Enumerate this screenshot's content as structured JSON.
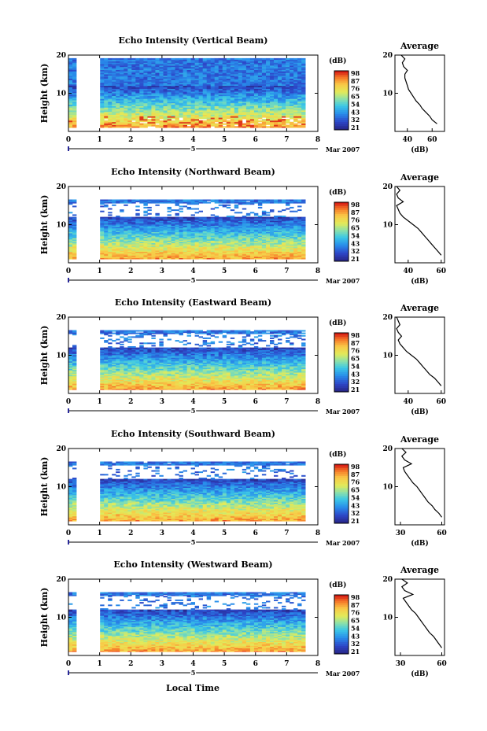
{
  "figure": {
    "x_axis_title": "Local Time",
    "date_label": "Mar 2007",
    "day_label": "5"
  },
  "chart_data": [
    {
      "type": "heatmap",
      "title": "Echo Intensity (Vertical Beam)",
      "ylabel": "Height (km)",
      "xlim": [
        0,
        8
      ],
      "ylim": [
        0,
        20
      ],
      "x_ticks": [
        "0",
        "1",
        "2",
        "3",
        "4",
        "5",
        "6",
        "7",
        "8"
      ],
      "y_ticks": [
        "10",
        "20"
      ],
      "data_gap_hours": [
        0.3,
        1.0
      ],
      "colorbar": {
        "label": "(dB)",
        "ticks": [
          "98",
          "87",
          "76",
          "65",
          "54",
          "43",
          "32",
          "21"
        ]
      },
      "profile": {
        "title": "Average",
        "xlabel": "(dB)",
        "xlim": [
          30,
          70
        ],
        "x_ticks": [
          "40",
          "60"
        ],
        "y_ticks": [
          "10",
          "20"
        ],
        "heights": [
          2,
          3,
          4,
          5,
          6,
          7,
          8,
          9,
          10,
          11,
          12,
          13,
          14,
          15,
          16,
          17,
          18,
          19,
          20
        ],
        "values": [
          64,
          60,
          58,
          55,
          52,
          50,
          47,
          45,
          43,
          41,
          40,
          39,
          38,
          38,
          40,
          37,
          36,
          38,
          35
        ]
      }
    },
    {
      "type": "heatmap",
      "title": "Echo Intensity (Northward Beam)",
      "ylabel": "Height (km)",
      "xlim": [
        0,
        8
      ],
      "ylim": [
        0,
        20
      ],
      "x_ticks": [
        "0",
        "1",
        "2",
        "3",
        "4",
        "5",
        "6",
        "7",
        "8"
      ],
      "y_ticks": [
        "10",
        "20"
      ],
      "data_gap_hours": [
        0.3,
        1.0
      ],
      "colorbar": {
        "label": "(dB)",
        "ticks": [
          "98",
          "87",
          "76",
          "65",
          "54",
          "43",
          "32",
          "21"
        ]
      },
      "profile": {
        "title": "Average",
        "xlabel": "(dB)",
        "xlim": [
          32,
          62
        ],
        "x_ticks": [
          "40",
          "60"
        ],
        "y_ticks": [
          "10",
          "20"
        ],
        "heights": [
          2,
          3,
          4,
          5,
          6,
          7,
          8,
          9,
          10,
          11,
          12,
          13,
          14,
          15,
          16,
          17,
          18,
          19,
          20
        ],
        "values": [
          60,
          58,
          56,
          54,
          52,
          50,
          48,
          46,
          43,
          40,
          37,
          35,
          34,
          33,
          37,
          34,
          33,
          35,
          33
        ]
      }
    },
    {
      "type": "heatmap",
      "title": "Echo Intensity (Eastward Beam)",
      "ylabel": "Height (km)",
      "xlim": [
        0,
        8
      ],
      "ylim": [
        0,
        20
      ],
      "x_ticks": [
        "0",
        "1",
        "2",
        "3",
        "4",
        "5",
        "6",
        "7",
        "8"
      ],
      "y_ticks": [
        "10",
        "20"
      ],
      "data_gap_hours": [
        0.3,
        1.0
      ],
      "colorbar": {
        "label": "(dB)",
        "ticks": [
          "98",
          "87",
          "76",
          "65",
          "54",
          "43",
          "32",
          "21"
        ]
      },
      "profile": {
        "title": "Average",
        "xlabel": "(dB)",
        "xlim": [
          32,
          62
        ],
        "x_ticks": [
          "40",
          "60"
        ],
        "y_ticks": [
          "10",
          "20"
        ],
        "heights": [
          2,
          3,
          4,
          5,
          6,
          7,
          8,
          9,
          10,
          11,
          12,
          13,
          14,
          15,
          16,
          17,
          18,
          19,
          20
        ],
        "values": [
          60,
          58,
          56,
          53,
          51,
          49,
          47,
          45,
          42,
          39,
          37,
          35,
          34,
          36,
          34,
          33,
          35,
          34,
          33
        ]
      }
    },
    {
      "type": "heatmap",
      "title": "Echo Intensity (Southward Beam)",
      "ylabel": "Height (km)",
      "xlim": [
        0,
        8
      ],
      "ylim": [
        0,
        20
      ],
      "x_ticks": [
        "0",
        "1",
        "2",
        "3",
        "4",
        "5",
        "6",
        "7",
        "8"
      ],
      "y_ticks": [
        "10",
        "20"
      ],
      "data_gap_hours": [
        0.3,
        1.0
      ],
      "colorbar": {
        "label": "(dB)",
        "ticks": [
          "98",
          "87",
          "76",
          "65",
          "54",
          "43",
          "32",
          "21"
        ]
      },
      "profile": {
        "title": "Average",
        "xlabel": "(dB)",
        "xlim": [
          26,
          62
        ],
        "x_ticks": [
          "30",
          "60"
        ],
        "y_ticks": [
          "10",
          "20"
        ],
        "heights": [
          2,
          3,
          4,
          5,
          6,
          7,
          8,
          9,
          10,
          11,
          12,
          13,
          14,
          15,
          16,
          17,
          18,
          19,
          20
        ],
        "values": [
          60,
          58,
          55,
          53,
          50,
          48,
          46,
          44,
          42,
          39,
          37,
          35,
          33,
          32,
          38,
          33,
          31,
          34,
          31
        ]
      }
    },
    {
      "type": "heatmap",
      "title": "Echo Intensity (Westward Beam)",
      "ylabel": "Height (km)",
      "xlim": [
        0,
        8
      ],
      "ylim": [
        0,
        20
      ],
      "x_ticks": [
        "0",
        "1",
        "2",
        "3",
        "4",
        "5",
        "6",
        "7",
        "8"
      ],
      "y_ticks": [
        "10",
        "20"
      ],
      "data_gap_hours": [
        0.3,
        1.0
      ],
      "colorbar": {
        "label": "(dB)",
        "ticks": [
          "98",
          "87",
          "76",
          "65",
          "54",
          "43",
          "32",
          "21"
        ]
      },
      "profile": {
        "title": "Average",
        "xlabel": "(dB)",
        "xlim": [
          26,
          62
        ],
        "x_ticks": [
          "30",
          "60"
        ],
        "y_ticks": [
          "10",
          "20"
        ],
        "heights": [
          2,
          3,
          4,
          5,
          6,
          7,
          8,
          9,
          10,
          11,
          12,
          13,
          14,
          15,
          16,
          17,
          18,
          19,
          20
        ],
        "values": [
          60,
          58,
          56,
          54,
          51,
          49,
          47,
          45,
          43,
          41,
          38,
          36,
          34,
          32,
          39,
          33,
          31,
          35,
          31
        ]
      }
    }
  ]
}
